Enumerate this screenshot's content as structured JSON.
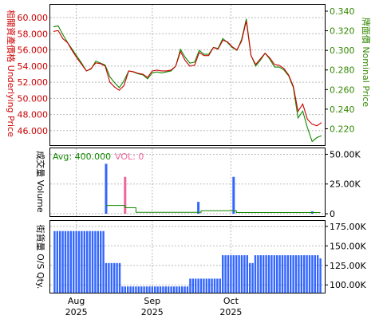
{
  "colors": {
    "left_axis": "#cc0000",
    "right_axis": "#338800",
    "underlying_line": "#cc0000",
    "nominal_line": "#118800",
    "volume_bar": "#3366ff",
    "volume_bar_alt": "#ee6699",
    "volume_avg": "#118800",
    "os_bar": "#3366ff",
    "grid": "#bbbbbb",
    "frame": "#000000"
  },
  "chart_data": [
    {
      "type": "line",
      "name": "price-panel",
      "left_axis_label": "相關資產價格 Underlying Price",
      "right_axis_label": "牌面價 Nominal Price",
      "left_ylim": [
        44.2,
        61.6
      ],
      "right_ylim": [
        0.2033,
        0.3465
      ],
      "left_ticks": [
        "60.000",
        "58.000",
        "56.000",
        "54.000",
        "52.000",
        "50.000",
        "48.000",
        "46.000"
      ],
      "left_tick_values": [
        60,
        58,
        56,
        54,
        52,
        50,
        48,
        46
      ],
      "right_ticks": [
        "0.340",
        "0.320",
        "0.300",
        "0.280",
        "0.260",
        "0.240",
        "0.220"
      ],
      "right_tick_values": [
        0.34,
        0.32,
        0.3,
        0.28,
        0.26,
        0.24,
        0.22
      ],
      "series": [
        {
          "role": "underlying",
          "values": [
            58.3,
            58.4,
            57.4,
            56.9,
            55.9,
            55.0,
            54.2,
            53.4,
            53.7,
            54.4,
            54.3,
            54.0,
            52.0,
            51.4,
            51.0,
            51.6,
            53.4,
            53.3,
            53.1,
            53.0,
            52.6,
            53.4,
            53.5,
            53.4,
            53.4,
            53.5,
            54.0,
            55.8,
            54.7,
            54.0,
            54.1,
            55.7,
            55.3,
            55.3,
            56.3,
            56.1,
            57.2,
            57.0,
            56.4,
            56.0,
            57.1,
            59.6,
            55.3,
            54.2,
            54.9,
            55.6,
            55.0,
            54.2,
            54.1,
            53.7,
            52.9,
            51.5,
            48.4,
            49.3,
            47.4,
            46.8,
            46.6,
            47.0
          ]
        },
        {
          "role": "nominal",
          "values": [
            0.324,
            0.325,
            0.316,
            0.308,
            0.301,
            0.294,
            0.287,
            0.279,
            0.281,
            0.289,
            0.287,
            0.285,
            0.273,
            0.267,
            0.262,
            0.269,
            0.279,
            0.278,
            0.276,
            0.275,
            0.271,
            0.277,
            0.278,
            0.277,
            0.278,
            0.279,
            0.284,
            0.301,
            0.293,
            0.287,
            0.288,
            0.3,
            0.296,
            0.296,
            0.303,
            0.302,
            0.312,
            0.308,
            0.303,
            0.3,
            0.311,
            0.332,
            0.295,
            0.284,
            0.29,
            0.297,
            0.291,
            0.283,
            0.283,
            0.28,
            0.274,
            0.262,
            0.231,
            0.238,
            0.221,
            0.207,
            0.211,
            0.213
          ]
        }
      ]
    },
    {
      "type": "bar",
      "name": "volume-panel",
      "axis_label": "成交量 Volume",
      "ylim": [
        -2000,
        55000
      ],
      "ticks": [
        "50.00K",
        "25.00K",
        "0"
      ],
      "tick_values": [
        50000,
        25000,
        0
      ],
      "avg_label": "Avg: 400.000",
      "vol_label": "VOL: 0",
      "bars": [
        {
          "x": 20,
          "value": 42000,
          "color": "primary"
        },
        {
          "x": 27,
          "value": 31000,
          "color": "alt"
        },
        {
          "x": 54,
          "value": 10000,
          "color": "primary"
        },
        {
          "x": 67,
          "value": 31000,
          "color": "primary"
        },
        {
          "x": 96,
          "value": 2000,
          "color": "primary"
        }
      ],
      "avg_line": [
        [
          20,
          7000
        ],
        [
          27,
          5000
        ],
        [
          31,
          1200
        ],
        [
          54,
          1200
        ],
        [
          55,
          2500
        ],
        [
          67,
          2500
        ],
        [
          68,
          1000
        ],
        [
          99,
          1000
        ]
      ]
    },
    {
      "type": "bar",
      "name": "os-panel",
      "axis_label": "街貨量 O/S Qty.",
      "ylim": [
        90000,
        182000
      ],
      "ticks": [
        "175.00K",
        "150.00K",
        "125.00K",
        "100.00K"
      ],
      "tick_values": [
        175000,
        150000,
        125000,
        100000
      ],
      "segments": [
        {
          "from": 1,
          "to": 19,
          "value": 169000
        },
        {
          "from": 20,
          "to": 25,
          "value": 128000
        },
        {
          "from": 26,
          "to": 50,
          "value": 98000
        },
        {
          "from": 51,
          "to": 62,
          "value": 108000
        },
        {
          "from": 63,
          "to": 72,
          "value": 138000
        },
        {
          "from": 73,
          "to": 74,
          "value": 128000
        },
        {
          "from": 75,
          "to": 86,
          "value": 138000
        },
        {
          "from": 87,
          "to": 99,
          "value": 138000
        }
      ],
      "last_value": 134000
    }
  ],
  "xaxis": {
    "months": [
      {
        "label": "Aug",
        "year": "2025",
        "x": 9
      },
      {
        "label": "Sep",
        "year": "2025",
        "x": 37
      },
      {
        "label": "Oct",
        "year": "2025",
        "x": 66
      }
    ]
  }
}
